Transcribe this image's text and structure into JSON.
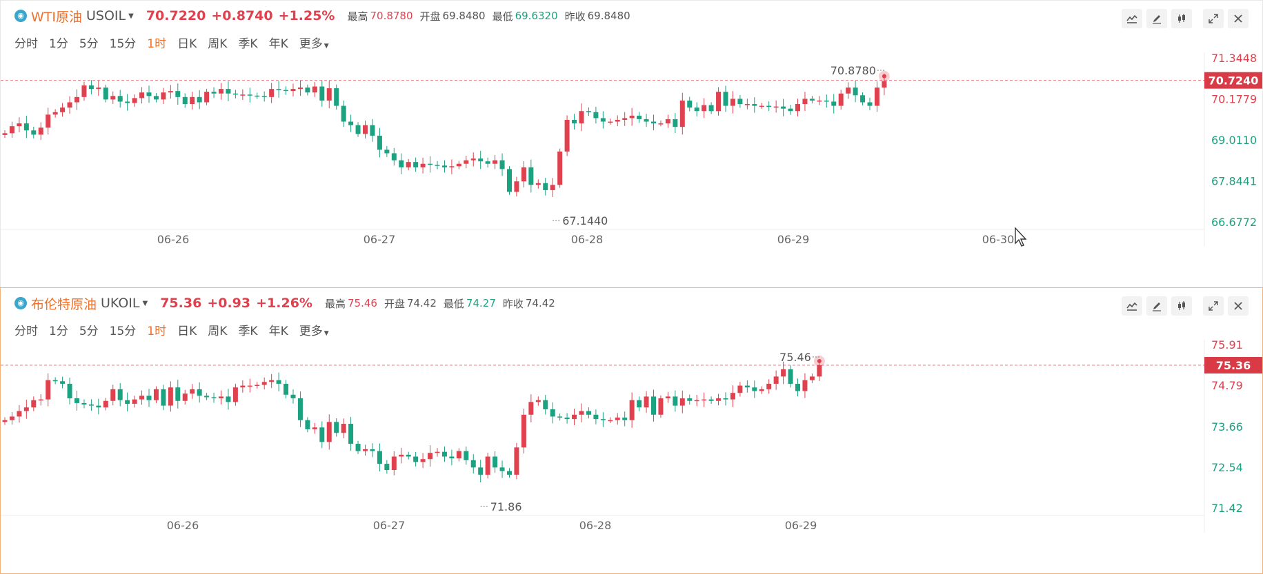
{
  "tabs": [
    "分时",
    "1分",
    "5分",
    "15分",
    "1时",
    "日K",
    "周K",
    "季K",
    "年K",
    "更多"
  ],
  "active_tab": "1时",
  "tool_icons": [
    "indicator-icon",
    "draw-pen-icon",
    "candle-style-icon",
    "expand-icon",
    "close-icon"
  ],
  "colors": {
    "up": "#e0414f",
    "down": "#1aa281",
    "accent": "#f0702a",
    "grid": "#f0f0f0"
  },
  "panels": [
    {
      "name": "WTI原油",
      "code": "USOIL",
      "price": "70.7220",
      "change": "+0.8740",
      "pct": "+1.25%",
      "high_label": "最高",
      "high": "70.8780",
      "open_label": "开盘",
      "open": "69.8480",
      "low_label": "最低",
      "low": "69.6320",
      "prev_label": "昨收",
      "prev": "69.8480"
    },
    {
      "name": "布伦特原油",
      "code": "UKOIL",
      "price": "75.36",
      "change": "+0.93",
      "pct": "+1.26%",
      "high_label": "最高",
      "high": "75.46",
      "open_label": "开盘",
      "open": "74.42",
      "low_label": "最低",
      "low": "74.27",
      "prev_label": "昨收",
      "prev": "74.42"
    }
  ],
  "chart_data": [
    {
      "type": "candlestick",
      "title": "WTI原油 USOIL 1时",
      "x_ticks": [
        "06-26",
        "06-27",
        "06-28",
        "06-29",
        "06-30"
      ],
      "y_ticks": [
        "71.3448",
        "70.1779",
        "69.0110",
        "67.8441",
        "66.6772"
      ],
      "ylim": [
        66.6772,
        71.3448
      ],
      "last_price": "70.7240",
      "max_label": "70.8780",
      "min_label": "67.1440",
      "ohlc_close": [
        69.22,
        69.42,
        69.5,
        69.3,
        69.18,
        69.38,
        69.75,
        69.82,
        69.95,
        70.1,
        70.25,
        70.58,
        70.48,
        70.52,
        70.18,
        70.28,
        70.12,
        70.08,
        70.22,
        70.38,
        70.28,
        70.18,
        70.38,
        70.42,
        70.25,
        70.05,
        70.25,
        70.1,
        70.4,
        70.35,
        70.48,
        70.35,
        70.32,
        70.32,
        70.29,
        70.28,
        70.25,
        70.48,
        70.45,
        70.42,
        70.48,
        70.52,
        70.38,
        70.55,
        70.15,
        70.5,
        70.0,
        69.55,
        69.45,
        69.2,
        69.45,
        69.15,
        68.75,
        68.65,
        68.45,
        68.25,
        68.4,
        68.25,
        68.35,
        68.32,
        68.3,
        68.25,
        68.28,
        68.35,
        68.45,
        68.5,
        68.42,
        68.35,
        68.45,
        68.2,
        67.55,
        67.85,
        68.25,
        67.75,
        67.8,
        67.6,
        67.75,
        68.7,
        69.6,
        69.5,
        69.85,
        69.82,
        69.65,
        69.55,
        69.55,
        69.6,
        69.65,
        69.72,
        69.62,
        69.55,
        69.5,
        69.5,
        69.62,
        69.4,
        70.15,
        69.95,
        69.85,
        70.02,
        69.85,
        70.4,
        70.0,
        70.2,
        70.05,
        70.05,
        70.0,
        70.0,
        69.98,
        69.98,
        69.92,
        69.85,
        70.05,
        70.2,
        70.15,
        70.15,
        70.12,
        70.0,
        70.35,
        70.52,
        70.3,
        70.1,
        70.0,
        70.52,
        70.7
      ],
      "note": "Close prices read approximately from the candles, left to right; the open of each bar is the previous close."
    },
    {
      "type": "candlestick",
      "title": "布伦特原油 UKOIL 1时",
      "x_ticks": [
        "06-26",
        "06-27",
        "06-28",
        "06-29"
      ],
      "y_ticks": [
        "75.91",
        "74.79",
        "73.66",
        "72.54",
        "71.42"
      ],
      "ylim": [
        71.42,
        75.91
      ],
      "last_price": "75.36",
      "max_label": "75.46",
      "min_label": "71.86",
      "ohlc_close": [
        73.85,
        73.95,
        74.1,
        74.2,
        74.4,
        74.42,
        74.95,
        74.92,
        74.85,
        74.45,
        74.32,
        74.28,
        74.25,
        74.2,
        74.38,
        74.7,
        74.4,
        74.3,
        74.42,
        74.52,
        74.4,
        74.7,
        74.25,
        74.75,
        74.38,
        74.58,
        74.7,
        74.52,
        74.48,
        74.45,
        74.5,
        74.35,
        74.75,
        74.8,
        74.8,
        74.82,
        74.9,
        74.95,
        74.85,
        74.55,
        74.45,
        73.85,
        73.6,
        73.65,
        73.25,
        73.8,
        73.5,
        73.75,
        73.2,
        73.0,
        73.05,
        73.0,
        72.65,
        72.48,
        72.85,
        72.9,
        72.85,
        72.7,
        72.78,
        72.95,
        72.98,
        72.85,
        72.8,
        73.0,
        72.75,
        72.55,
        72.35,
        72.85,
        72.55,
        72.45,
        72.35,
        73.1,
        74.0,
        74.35,
        74.4,
        74.15,
        73.95,
        73.92,
        73.88,
        74.0,
        74.1,
        74.0,
        73.88,
        73.85,
        73.85,
        73.92,
        73.85,
        74.4,
        74.2,
        74.5,
        74.0,
        74.45,
        74.5,
        74.25,
        74.45,
        74.38,
        74.4,
        74.42,
        74.38,
        74.45,
        74.42,
        74.6,
        74.8,
        74.75,
        74.65,
        74.7,
        74.85,
        75.05,
        75.25,
        74.85,
        74.65,
        74.95,
        75.05,
        75.36
      ]
    }
  ]
}
